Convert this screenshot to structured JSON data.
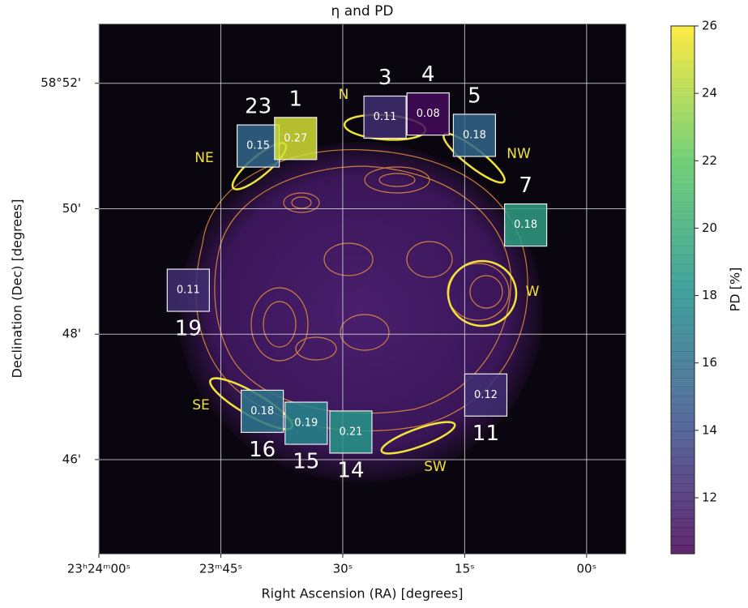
{
  "chart_data": {
    "type": "region-map",
    "title": "η and PD",
    "x_label": "Right Ascension (RA) [degrees]",
    "y_label": "Declination (Dec) [degrees]",
    "colorbar_label": "PD [%]",
    "colormap": "viridis",
    "xlim": [
      60,
      -4.8
    ],
    "xticks": [
      {
        "value": 60,
        "label": "23ʰ24ᵐ00ˢ"
      },
      {
        "value": 45,
        "label": "23ᵐ45ˢ"
      },
      {
        "value": 30,
        "label": "30ˢ"
      },
      {
        "value": 15,
        "label": "15ˢ"
      },
      {
        "value": 0,
        "label": "00ˢ"
      }
    ],
    "ylim": [
      44.5,
      52.94
    ],
    "yticks": [
      {
        "value": 52,
        "label": "58°52'"
      },
      {
        "value": 50,
        "label": "50'"
      },
      {
        "value": 48,
        "label": "48'"
      },
      {
        "value": 46,
        "label": "46'"
      }
    ],
    "clim": [
      10.34,
      26
    ],
    "cticks": [
      12,
      14,
      16,
      18,
      20,
      22,
      24,
      26
    ],
    "grid": true,
    "regions": [
      {
        "id": "23",
        "eta": 0.15,
        "pd": 15.5,
        "x": 40.4,
        "y": 51.0
      },
      {
        "id": "1",
        "eta": 0.27,
        "pd": 25,
        "x": 35.8,
        "y": 51.12
      },
      {
        "id": "3",
        "eta": 0.11,
        "pd": 12.5,
        "x": 24.8,
        "y": 51.46
      },
      {
        "id": "4",
        "eta": 0.08,
        "pd": 10.8,
        "x": 19.5,
        "y": 51.51
      },
      {
        "id": "5",
        "eta": 0.18,
        "pd": 15.5,
        "x": 13.8,
        "y": 51.17
      },
      {
        "id": "7",
        "eta": 0.18,
        "pd": 19,
        "x": 7.5,
        "y": 49.74
      },
      {
        "id": "19",
        "eta": 0.11,
        "pd": 12.5,
        "x": 49,
        "y": 48.7
      },
      {
        "id": "11",
        "eta": 0.12,
        "pd": 12.5,
        "x": 12.4,
        "y": 47.03
      },
      {
        "id": "16",
        "eta": 0.18,
        "pd": 16.5,
        "x": 39.9,
        "y": 46.77
      },
      {
        "id": "15",
        "eta": 0.19,
        "pd": 17.5,
        "x": 34.5,
        "y": 46.58
      },
      {
        "id": "14",
        "eta": 0.21,
        "pd": 18.5,
        "x": 29,
        "y": 46.44
      }
    ],
    "annotations": [
      "N",
      "NE",
      "NW",
      "W",
      "SE",
      "SW"
    ]
  }
}
